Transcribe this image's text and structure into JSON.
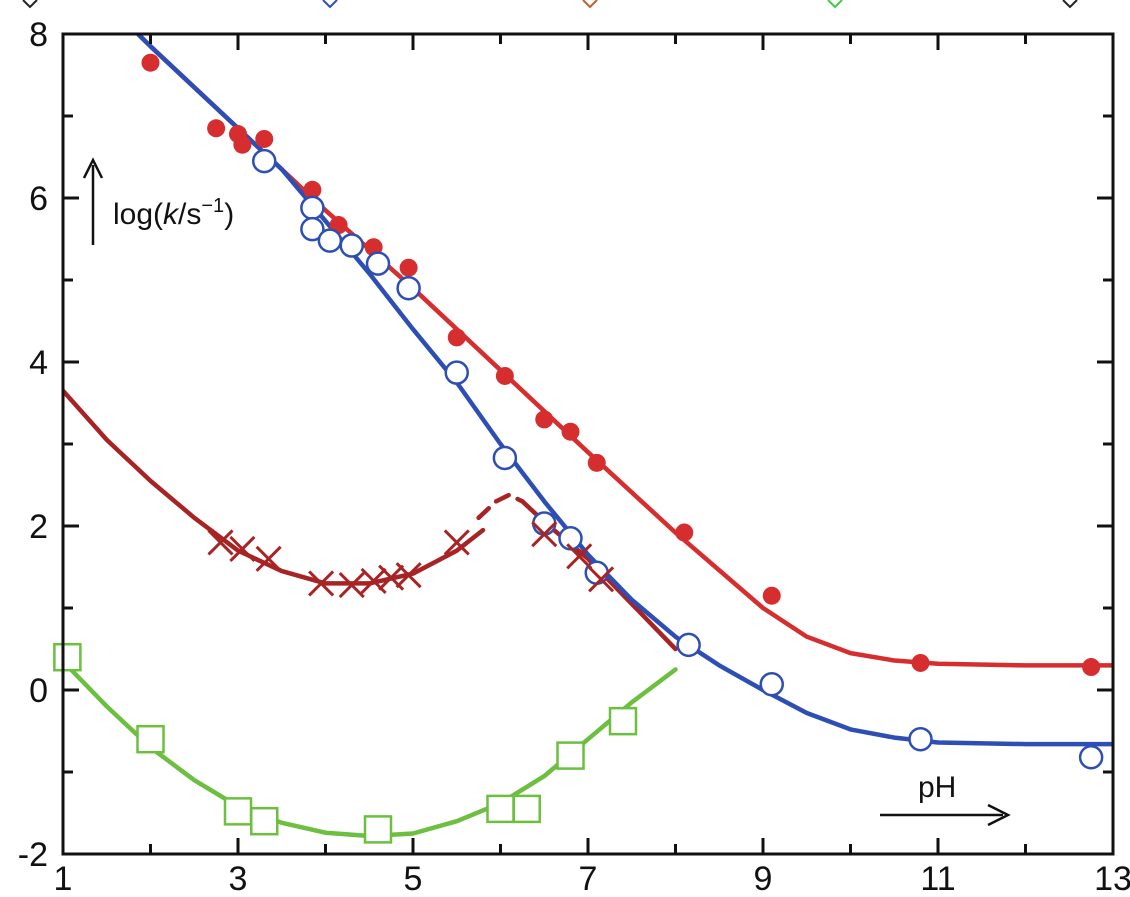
{
  "chart_data": {
    "type": "scatter",
    "title": "",
    "xlabel": "pH",
    "ylabel": "log(k/s⁻¹)",
    "ylabel_parts": [
      "log(",
      "k",
      "/s",
      "−1",
      ")"
    ],
    "xlim": [
      1,
      13
    ],
    "ylim": [
      -2,
      8
    ],
    "xticks": [
      1,
      3,
      5,
      7,
      9,
      11,
      13
    ],
    "yticks": [
      -2,
      0,
      2,
      4,
      6,
      8
    ],
    "xtick_labels": [
      "1",
      "3",
      "5",
      "7",
      "9",
      "11",
      "13"
    ],
    "ytick_labels": [
      "-2",
      "0",
      "2",
      "4",
      "6",
      "8"
    ],
    "grid": false,
    "series": [
      {
        "marker": "filled-circle",
        "color": "#d62e2e",
        "points": [
          [
            2.0,
            7.65
          ],
          [
            2.75,
            6.85
          ],
          [
            3.0,
            6.78
          ],
          [
            3.05,
            6.65
          ],
          [
            3.3,
            6.72
          ],
          [
            3.85,
            6.1
          ],
          [
            4.15,
            5.67
          ],
          [
            4.55,
            5.4
          ],
          [
            4.95,
            5.15
          ],
          [
            5.5,
            4.3
          ],
          [
            6.05,
            3.83
          ],
          [
            6.5,
            3.3
          ],
          [
            6.8,
            3.15
          ],
          [
            7.1,
            2.77
          ],
          [
            8.1,
            1.92
          ],
          [
            9.1,
            1.15
          ],
          [
            10.8,
            0.33
          ],
          [
            12.75,
            0.28
          ]
        ],
        "fit": [
          [
            1.0,
            8.9
          ],
          [
            2.0,
            7.85
          ],
          [
            3.0,
            6.85
          ],
          [
            4.0,
            5.85
          ],
          [
            5.0,
            4.9
          ],
          [
            6.0,
            3.9
          ],
          [
            7.0,
            2.9
          ],
          [
            8.0,
            1.92
          ],
          [
            9.0,
            1.0
          ],
          [
            9.5,
            0.65
          ],
          [
            10.0,
            0.45
          ],
          [
            10.5,
            0.36
          ],
          [
            11.0,
            0.32
          ],
          [
            12.0,
            0.3
          ],
          [
            13.0,
            0.3
          ]
        ]
      },
      {
        "marker": "open-circle",
        "color": "#2d4fb5",
        "points": [
          [
            3.3,
            6.45
          ],
          [
            3.85,
            5.88
          ],
          [
            3.85,
            5.62
          ],
          [
            4.05,
            5.48
          ],
          [
            4.3,
            5.42
          ],
          [
            4.6,
            5.2
          ],
          [
            4.95,
            4.9
          ],
          [
            5.5,
            3.87
          ],
          [
            6.05,
            2.83
          ],
          [
            6.5,
            2.03
          ],
          [
            6.8,
            1.85
          ],
          [
            7.1,
            1.43
          ],
          [
            8.15,
            0.55
          ],
          [
            9.1,
            0.07
          ],
          [
            10.8,
            -0.6
          ],
          [
            12.75,
            -0.82
          ]
        ],
        "fit": [
          [
            1.0,
            8.9
          ],
          [
            2.0,
            7.85
          ],
          [
            3.0,
            6.85
          ],
          [
            3.5,
            6.35
          ],
          [
            4.0,
            5.72
          ],
          [
            4.5,
            5.08
          ],
          [
            5.0,
            4.4
          ],
          [
            5.5,
            3.75
          ],
          [
            6.0,
            3.0
          ],
          [
            6.5,
            2.3
          ],
          [
            7.0,
            1.65
          ],
          [
            7.5,
            1.1
          ],
          [
            8.0,
            0.65
          ],
          [
            8.5,
            0.3
          ],
          [
            9.0,
            0.0
          ],
          [
            9.5,
            -0.28
          ],
          [
            10.0,
            -0.48
          ],
          [
            10.5,
            -0.58
          ],
          [
            11.0,
            -0.64
          ],
          [
            12.0,
            -0.66
          ],
          [
            13.0,
            -0.66
          ]
        ]
      },
      {
        "marker": "cross",
        "color": "#a82424",
        "points": [
          [
            2.8,
            1.8
          ],
          [
            3.05,
            1.72
          ],
          [
            3.35,
            1.6
          ],
          [
            3.95,
            1.3
          ],
          [
            4.3,
            1.28
          ],
          [
            4.55,
            1.33
          ],
          [
            4.75,
            1.37
          ],
          [
            4.95,
            1.4
          ],
          [
            5.5,
            1.8
          ],
          [
            6.5,
            1.9
          ],
          [
            6.9,
            1.63
          ],
          [
            7.15,
            1.35
          ]
        ],
        "fit": [
          [
            1.0,
            3.65
          ],
          [
            1.5,
            3.05
          ],
          [
            2.0,
            2.55
          ],
          [
            2.5,
            2.1
          ],
          [
            3.0,
            1.7
          ],
          [
            3.5,
            1.45
          ],
          [
            4.0,
            1.3
          ],
          [
            4.5,
            1.3
          ],
          [
            5.0,
            1.42
          ],
          [
            5.5,
            1.7
          ],
          [
            5.8,
            1.95
          ]
        ],
        "fit2": [
          [
            6.25,
            2.3
          ],
          [
            6.5,
            2.05
          ],
          [
            7.0,
            1.6
          ],
          [
            7.5,
            1.05
          ],
          [
            8.0,
            0.5
          ]
        ],
        "arc": [
          [
            5.75,
            2.1
          ],
          [
            5.95,
            2.3
          ],
          [
            6.1,
            2.38
          ],
          [
            6.25,
            2.3
          ]
        ]
      },
      {
        "marker": "open-square",
        "color": "#6cbf3f",
        "points": [
          [
            1.05,
            0.4
          ],
          [
            2.0,
            -0.6
          ],
          [
            3.0,
            -1.48
          ],
          [
            3.3,
            -1.6
          ],
          [
            4.6,
            -1.7
          ],
          [
            6.0,
            -1.45
          ],
          [
            6.3,
            -1.45
          ],
          [
            6.8,
            -0.8
          ],
          [
            7.4,
            -0.38
          ]
        ],
        "fit": [
          [
            1.0,
            0.35
          ],
          [
            1.5,
            -0.2
          ],
          [
            2.0,
            -0.7
          ],
          [
            2.5,
            -1.1
          ],
          [
            3.0,
            -1.42
          ],
          [
            3.5,
            -1.62
          ],
          [
            4.0,
            -1.74
          ],
          [
            4.5,
            -1.78
          ],
          [
            5.0,
            -1.75
          ],
          [
            5.5,
            -1.6
          ],
          [
            6.0,
            -1.38
          ],
          [
            6.5,
            -1.05
          ],
          [
            7.0,
            -0.6
          ],
          [
            7.5,
            -0.15
          ],
          [
            8.0,
            0.25
          ]
        ]
      }
    ],
    "top_legend_colors": [
      "#222222",
      "#2d4fb5",
      "#c06030",
      "#3ccf3c",
      "#222222"
    ]
  }
}
